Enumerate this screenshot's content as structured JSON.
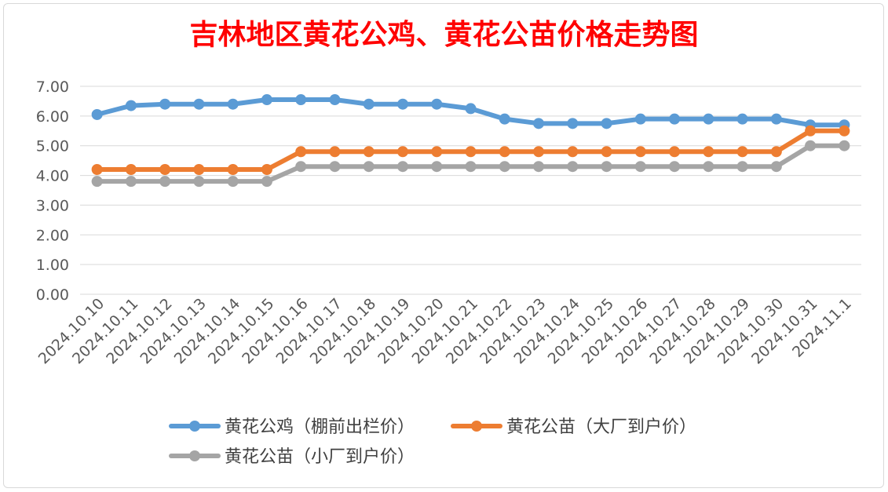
{
  "chart_data": {
    "type": "line",
    "title": "吉林地区黄花公鸡、黄花公苗价格走势图",
    "xlabel": "",
    "ylabel": "",
    "ylim": [
      0,
      7
    ],
    "ytick_step": 1,
    "ytick_labels": [
      "0.00",
      "1.00",
      "2.00",
      "3.00",
      "4.00",
      "5.00",
      "6.00",
      "7.00"
    ],
    "grid": true,
    "legend_position": "bottom",
    "categories": [
      "2024.10.10",
      "2024.10.11",
      "2024.10.12",
      "2024.10.13",
      "2024.10.14",
      "2024.10.15",
      "2024.10.16",
      "2024.10.17",
      "2024.10.18",
      "2024.10.19",
      "2024.10.20",
      "2024.10.21",
      "2024.10.22",
      "2024.10.23",
      "2024.10.24",
      "2024.10.25",
      "2024.10.26",
      "2024.10.27",
      "2024.10.28",
      "2024.10.29",
      "2024.10.30",
      "2024.10.31",
      "2024.11.1"
    ],
    "series": [
      {
        "name": "黄花公鸡（棚前出栏价）",
        "color": "#5b9bd5",
        "values": [
          6.05,
          6.35,
          6.4,
          6.4,
          6.4,
          6.55,
          6.55,
          6.55,
          6.4,
          6.4,
          6.4,
          6.25,
          5.9,
          5.75,
          5.75,
          5.75,
          5.9,
          5.9,
          5.9,
          5.9,
          5.9,
          5.7,
          5.7
        ]
      },
      {
        "name": "黄花公苗（大厂到户价）",
        "color": "#ed7d31",
        "values": [
          4.2,
          4.2,
          4.2,
          4.2,
          4.2,
          4.2,
          4.8,
          4.8,
          4.8,
          4.8,
          4.8,
          4.8,
          4.8,
          4.8,
          4.8,
          4.8,
          4.8,
          4.8,
          4.8,
          4.8,
          4.8,
          5.5,
          5.5
        ]
      },
      {
        "name": "黄花公苗（小厂到户价）",
        "color": "#a5a5a5",
        "values": [
          3.8,
          3.8,
          3.8,
          3.8,
          3.8,
          3.8,
          4.3,
          4.3,
          4.3,
          4.3,
          4.3,
          4.3,
          4.3,
          4.3,
          4.3,
          4.3,
          4.3,
          4.3,
          4.3,
          4.3,
          4.3,
          5.0,
          5.0
        ]
      }
    ]
  }
}
